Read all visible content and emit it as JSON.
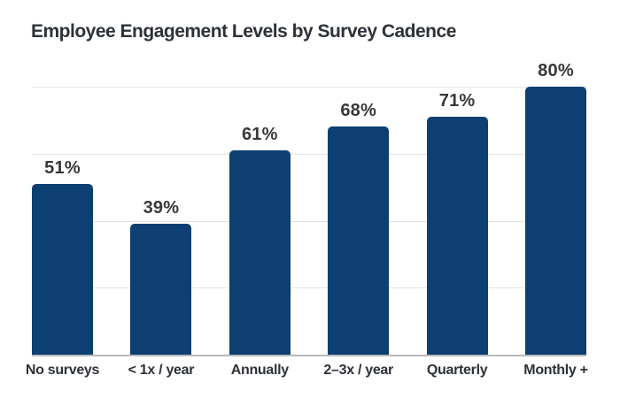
{
  "title": "Employee Engagement Levels by Survey Cadence",
  "colors": {
    "background": "#FFFFFF",
    "bar": "#0D3F72",
    "title_text": "#2D3138",
    "value_label_text": "#383838",
    "axis_label_text": "#2D3138",
    "gridline": "#E3E3E3",
    "baseline": "#B9B9B9"
  },
  "chart_data": {
    "type": "bar",
    "title": "Employee Engagement Levels by Survey Cadence",
    "categories": [
      "No surveys",
      "< 1x / year",
      "Annually",
      "2–3x / year",
      "Quarterly",
      "Monthly +"
    ],
    "values": [
      51,
      39,
      61,
      68,
      71,
      80
    ],
    "value_labels": [
      "51%",
      "39%",
      "61%",
      "68%",
      "71%",
      "80%"
    ],
    "xlabel": "",
    "ylabel": "",
    "ylim": [
      0,
      80
    ],
    "gridlines": [
      20,
      40,
      60,
      80
    ],
    "grid": "horizontal-only",
    "y_tick_labels_visible": false,
    "legend": "none",
    "bar_color": "#0D3F72"
  }
}
